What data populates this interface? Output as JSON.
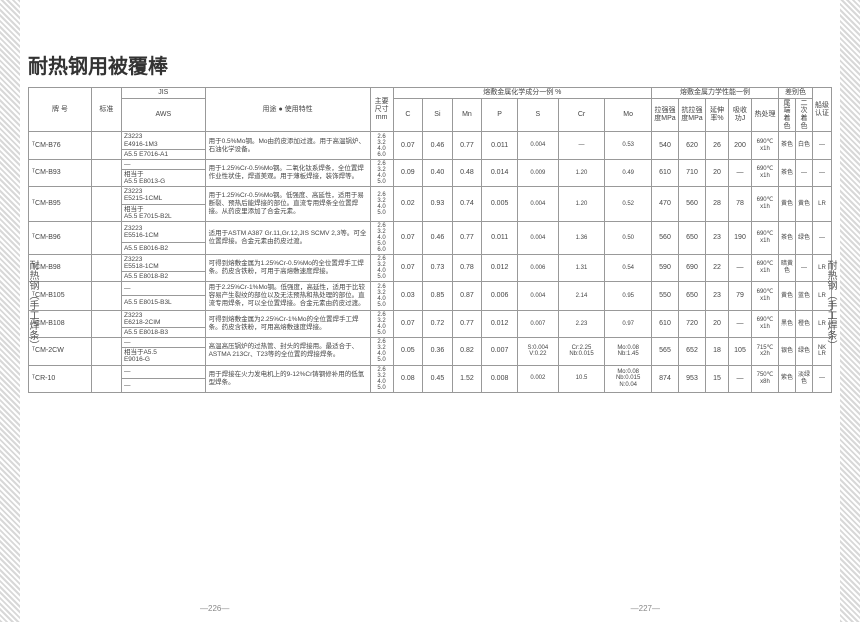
{
  "title": "耐热钢用被覆棒",
  "sideLabel": "耐热钢（手工焊条）",
  "pageLeft": "—226—",
  "pageRight": "—227—",
  "headers": {
    "grade": "牌 号",
    "std": "标准",
    "jis": "JIS",
    "aws": "AWS",
    "usage": "用途 ● 使用特性",
    "dim": "主要尺寸mm",
    "chem": "熔敷金属化学成分一例 %",
    "mech": "熔敷金属力学性能一例",
    "color": "差别色",
    "cert": "船级认证",
    "c": "C",
    "si": "Si",
    "mn": "Mn",
    "p": "P",
    "s": "S",
    "cr": "Cr",
    "mo": "Mo",
    "ts": "拉强强度MPa",
    "ys": "抗拉强度MPa",
    "el": "延伸率%",
    "imp": "吸收功J",
    "heat": "热处理",
    "end": "尾端着色",
    "sec": "二次着色"
  },
  "dims": "2.6\n3.2\n4.0\n5.0",
  "rows": [
    {
      "g": "ᵀCM-B76",
      "j": "Z3223\nE4916-1M3",
      "a": "A5.5 E7016-A1",
      "d": "用于0.5%Mo钢。Mo由药皮添加过渡。用于高温锅炉、石油化学设备。",
      "dim": "2.6\n3.2\n4.0\n6.0",
      "c": "0.07",
      "si": "0.46",
      "mn": "0.77",
      "p": "0.011",
      "s": "0.004",
      "cr": "—",
      "mo": "0.53",
      "ts": "540",
      "ys": "620",
      "el": "26",
      "imp": "200",
      "heat": "690℃\nx1h",
      "end": "茶色",
      "sec": "白色",
      "cert": "—"
    },
    {
      "g": "ᵀCM-B93",
      "j": "—",
      "a": "相当于\nA5.5 E8013-G",
      "d": "用于1.25%Cr-0.5%Mo钢。二氧化钛系焊条，全位置焊作业性状佳，焊道美观。用于薄板焊接，装饰焊等。",
      "dim": "2.6\n3.2\n4.0\n5.0",
      "c": "0.09",
      "si": "0.40",
      "mn": "0.48",
      "p": "0.014",
      "s": "0.009",
      "cr": "1.20",
      "mo": "0.49",
      "ts": "610",
      "ys": "710",
      "el": "20",
      "imp": "—",
      "heat": "690℃\nx1h",
      "end": "茶色",
      "sec": "—",
      "cert": "—"
    },
    {
      "g": "ᵀCM-B95",
      "j": "Z3223\nE5215-1CML",
      "a": "相当于\nA5.5 E7015-B2L",
      "d": "用于1.25%Cr-0.5%Mo钢。低强度、高延性，适用于易断裂、预热后能焊接的部位。直流专用焊条全位置焊接。从药皮里添加了合金元素。",
      "dim": "2.6\n3.2\n4.0\n5.0",
      "c": "0.02",
      "si": "0.93",
      "mn": "0.74",
      "p": "0.005",
      "s": "0.004",
      "cr": "1.20",
      "mo": "0.52",
      "ts": "470",
      "ys": "560",
      "el": "28",
      "imp": "78",
      "heat": "690℃\nx1h",
      "end": "黄色",
      "sec": "黄色",
      "cert": "LR"
    },
    {
      "g": "ᵀCM-B96",
      "j": "Z3223\nE5516-1CM",
      "a": "A5.5 E8016-B2",
      "d": "适用于ASTM A387 Gr.11,Gr.12,JIS SCMV 2,3等。可全位置焊接。合金元素由药皮过渡。",
      "dim": "2.6\n3.2\n4.0\n5.0\n6.0",
      "c": "0.07",
      "si": "0.46",
      "mn": "0.77",
      "p": "0.011",
      "s": "0.004",
      "cr": "1.36",
      "mo": "0.50",
      "ts": "560",
      "ys": "650",
      "el": "23",
      "imp": "190",
      "heat": "690℃\nx1h",
      "end": "茶色",
      "sec": "绿色",
      "cert": "—"
    },
    {
      "g": "ᵀCM-B98",
      "j": "Z3223\nE5518-1CM",
      "a": "A5.5 E8018-B2",
      "d": "可得到熔敷金属为1.25%Cr-0.5%Mo的全位置焊手工焊条。药皮含铁粉，可用于高熔敷速度焊接。",
      "dim": "2.6\n3.2\n4.0\n5.0",
      "c": "0.07",
      "si": "0.73",
      "mn": "0.78",
      "p": "0.012",
      "s": "0.006",
      "cr": "1.31",
      "mo": "0.54",
      "ts": "590",
      "ys": "690",
      "el": "22",
      "imp": "—",
      "heat": "690℃\nx1h",
      "end": "暗黄色",
      "sec": "—",
      "cert": "LR"
    },
    {
      "g": "ᵀCM-B105",
      "j": "—",
      "a": "A5.5 E8015-B3L",
      "d": "用于2.25%Cr-1%Mo钢。低强度，高延性，适用于比较容易产生裂纹的部位以及无法预热和热处理的部位。直流专用焊条，可以全位置焊接。合金元素由药皮过渡。",
      "dim": "2.6\n3.2\n4.0\n5.0",
      "c": "0.03",
      "si": "0.85",
      "mn": "0.87",
      "p": "0.006",
      "s": "0.004",
      "cr": "2.14",
      "mo": "0.95",
      "ts": "550",
      "ys": "650",
      "el": "23",
      "imp": "79",
      "heat": "690℃\nx1h",
      "end": "黄色",
      "sec": "蓝色",
      "cert": "LR"
    },
    {
      "g": "ᵀCM-B108",
      "j": "Z3223\nE6218-2CIM",
      "a": "A5.5 E8018-B3",
      "d": "可得到熔敷金属为2.25%Cr-1%Mo的全位置焊手工焊条。药皮含铁粉，可用高熔敷速度焊接。",
      "dim": "2.6\n3.2\n4.0\n5.0",
      "c": "0.07",
      "si": "0.72",
      "mn": "0.77",
      "p": "0.012",
      "s": "0.007",
      "cr": "2.23",
      "mo": "0.97",
      "ts": "610",
      "ys": "720",
      "el": "20",
      "imp": "—",
      "heat": "690℃\nx1h",
      "end": "黑色",
      "sec": "橙色",
      "cert": "LR"
    },
    {
      "g": "ᵀCM-2CW",
      "j": "—",
      "a": "相当于A5.5\nE9016-G",
      "d": "高温高压锅炉的过热管、封头的焊接用。最适合于、ASTMA 213Cr、T23等的全位置的焊接焊条。",
      "dim": "2.6\n3.2\n4.0\n5.0",
      "c": "0.05",
      "si": "0.36",
      "mn": "0.82",
      "p": "0.007",
      "s": "S:0.004\nV:0.22",
      "cr": "Cr:2.25\nNb:0.015",
      "mo": "Mo:0.08\nNb:1.45",
      "ts": "565",
      "ys": "652",
      "el": "18",
      "imp": "105",
      "heat": "715℃\nx2h",
      "end": "银色",
      "sec": "绿色",
      "cert": "NK\nLR"
    },
    {
      "g": "ᵀCR-10",
      "j": "—",
      "a": "—",
      "d": "用于焊接在火力发电机上的9-12%Cr铸钢修补用的低氢型焊条。",
      "dim": "2.6\n3.2\n4.0\n5.0",
      "c": "0.08",
      "si": "0.45",
      "mn": "1.52",
      "p": "0.008",
      "s": "0.002",
      "cr": "10.5",
      "mo": "Mo:0.08\nNb:0.015\nN:0.04",
      "ts": "874",
      "ys": "953",
      "el": "15",
      "imp": "—",
      "heat": "750℃\nx8h",
      "end": "紫色",
      "sec": "淡绿色",
      "cert": "—"
    }
  ]
}
